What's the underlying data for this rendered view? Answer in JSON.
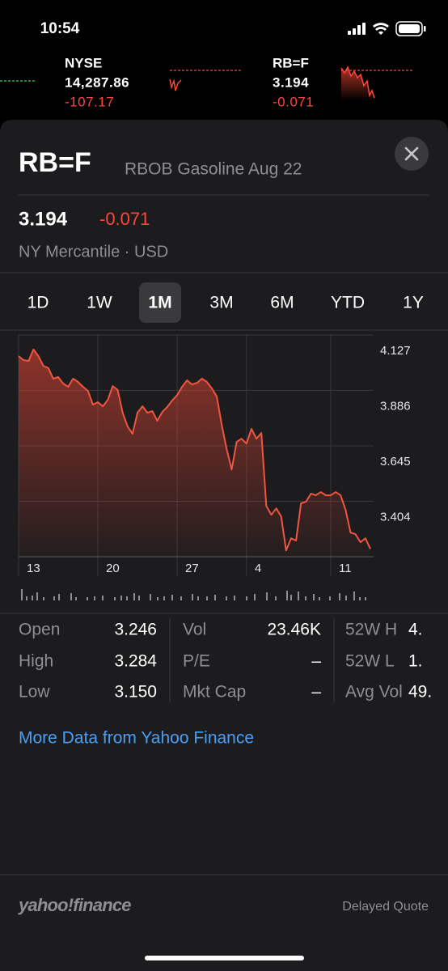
{
  "status_bar": {
    "time": "10:54"
  },
  "ticker": [
    {
      "symbol": "NYSE",
      "price": "14,287.86",
      "change": "-107.17"
    },
    {
      "symbol": "RB=F",
      "price": "3.194",
      "change": "-0.071"
    }
  ],
  "header": {
    "symbol": "RB=F",
    "name": "RBOB Gasoline Aug 22",
    "price": "3.194",
    "change": "-0.071",
    "exchange": "NY Mercantile · USD"
  },
  "ranges": {
    "options": [
      "1D",
      "1W",
      "1M",
      "3M",
      "6M",
      "YTD",
      "1Y"
    ],
    "selected": "1M"
  },
  "chart_data": {
    "type": "line",
    "color": "#f0553f",
    "grid": true,
    "categories": [
      "13",
      null,
      null,
      null,
      null,
      null,
      null,
      null,
      null,
      null,
      null,
      null,
      null,
      null,
      null,
      null,
      "20",
      null,
      null,
      null,
      null,
      null,
      null,
      null,
      null,
      null,
      null,
      null,
      null,
      null,
      null,
      null,
      "27",
      null,
      null,
      null,
      null,
      null,
      null,
      null,
      null,
      null,
      null,
      null,
      null,
      null,
      "4",
      null,
      null,
      null,
      null,
      null,
      null,
      null,
      null,
      null,
      null,
      null,
      null,
      null,
      null,
      null,
      null,
      "11",
      null,
      null,
      null,
      null,
      null,
      null,
      null,
      null
    ],
    "values": [
      4.035,
      4.018,
      4.014,
      4.064,
      4.035,
      3.993,
      3.983,
      3.937,
      3.944,
      3.916,
      3.902,
      3.937,
      3.923,
      3.902,
      3.884,
      3.824,
      3.835,
      3.817,
      3.845,
      3.905,
      3.888,
      3.789,
      3.729,
      3.697,
      3.789,
      3.817,
      3.789,
      3.796,
      3.754,
      3.792,
      3.814,
      3.842,
      3.866,
      3.902,
      3.93,
      3.912,
      3.919,
      3.937,
      3.923,
      3.895,
      3.859,
      3.736,
      3.631,
      3.542,
      3.662,
      3.676,
      3.655,
      3.719,
      3.676,
      3.701,
      3.384,
      3.345,
      3.373,
      3.338,
      3.19,
      3.243,
      3.233,
      3.395,
      3.402,
      3.437,
      3.43,
      3.444,
      3.43,
      3.43,
      3.444,
      3.43,
      3.366,
      3.268,
      3.261,
      3.226,
      3.243,
      3.197
    ],
    "ylim": [
      3.163,
      4.127
    ],
    "yticks": [
      4.127,
      3.886,
      3.645,
      3.404
    ]
  },
  "stats": [
    [
      {
        "label": "Open",
        "value": "3.246"
      },
      {
        "label": "High",
        "value": "3.284"
      },
      {
        "label": "Low",
        "value": "3.150"
      }
    ],
    [
      {
        "label": "Vol",
        "value": "23.46K"
      },
      {
        "label": "P/E",
        "value": "–"
      },
      {
        "label": "Mkt Cap",
        "value": "–"
      }
    ],
    [
      {
        "label": "52W H",
        "value": "4."
      },
      {
        "label": "52W L",
        "value": "1."
      },
      {
        "label": "Avg Vol",
        "value": "49."
      }
    ]
  ],
  "link": "More Data from Yahoo Finance",
  "footer": {
    "logo": "yahoo!finance",
    "note": "Delayed Quote"
  }
}
